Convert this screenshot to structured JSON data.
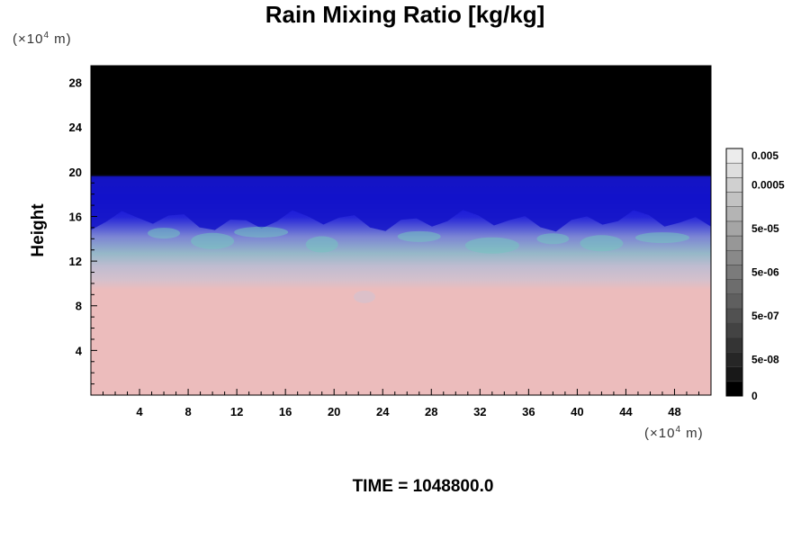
{
  "chart_data": {
    "type": "heatmap",
    "title": "Rain Mixing Ratio [kg/kg]",
    "ylabel": "Height",
    "y_unit": {
      "prefix": "(×10",
      "exponent": "4",
      "suffix": " m)"
    },
    "x_unit": {
      "prefix": "(×10",
      "exponent": "4",
      "suffix": " m)"
    },
    "time_label": "TIME = 1048800.0",
    "xlim": [
      0,
      51
    ],
    "ylim": [
      0,
      29.5
    ],
    "x_ticks": [
      4,
      8,
      12,
      16,
      20,
      24,
      28,
      32,
      36,
      40,
      44,
      48
    ],
    "x_tick_labels": [
      "4",
      "8",
      "12",
      "16",
      "20",
      "24",
      "28",
      "32",
      "36",
      "40",
      "44",
      "48"
    ],
    "y_ticks": [
      4,
      8,
      12,
      16,
      20,
      24,
      28
    ],
    "y_tick_labels": [
      "4",
      "8",
      "12",
      "16",
      "20",
      "24",
      "28"
    ],
    "colorbar": {
      "levels": 17,
      "labels": [
        {
          "level": 0,
          "text": "0"
        },
        {
          "level": 2,
          "text": "5e-08"
        },
        {
          "level": 5,
          "text": "5e-07"
        },
        {
          "level": 8,
          "text": "5e-06"
        },
        {
          "level": 11,
          "text": "5e-05"
        },
        {
          "level": 14,
          "text": "0.0005"
        },
        {
          "level": 16,
          "text": "0.005"
        }
      ]
    },
    "colors": {
      "above": "#000000",
      "upper_band": "#0a0ad0",
      "mid_band": "#7080d8",
      "teal_streak": "#70c0c0",
      "lower_band": "#c8b8c8",
      "bottom": "#ecbcbc"
    }
  }
}
